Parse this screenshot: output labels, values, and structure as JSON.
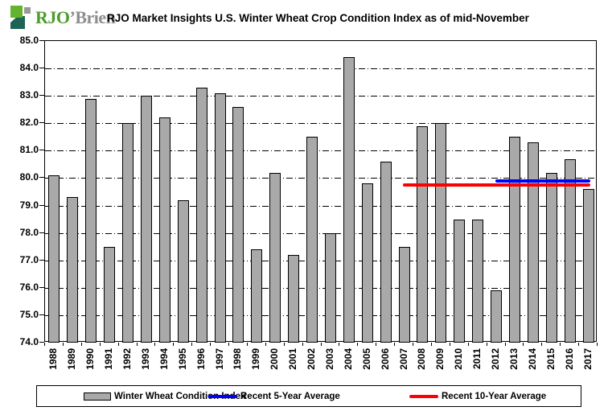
{
  "header": {
    "logo": {
      "text_primary": "RJO",
      "text_secondary": "’Brien",
      "colors": {
        "primary_text": "#4c9c2e",
        "secondary_text": "#8e8e8e",
        "icon_bright_green": "#62b32e",
        "icon_teal": "#1e6356",
        "icon_gray": "#999999"
      }
    }
  },
  "chart_data": {
    "type": "bar",
    "title": "RJO Market Insights U.S. Winter Wheat Crop Condition Index as of mid-November",
    "categories": [
      "1988",
      "1989",
      "1990",
      "1991",
      "1992",
      "1993",
      "1994",
      "1995",
      "1996",
      "1997",
      "1998",
      "1999",
      "2000",
      "2001",
      "2002",
      "2003",
      "2004",
      "2005",
      "2006",
      "2007",
      "2008",
      "2009",
      "2010",
      "2011",
      "2012",
      "2013",
      "2014",
      "2015",
      "2016",
      "2017"
    ],
    "values": [
      80.1,
      79.3,
      82.9,
      77.5,
      82.0,
      83.0,
      82.2,
      79.2,
      83.3,
      83.1,
      82.6,
      77.4,
      80.2,
      77.2,
      81.5,
      78.0,
      84.4,
      79.8,
      80.6,
      77.5,
      81.9,
      82.0,
      78.5,
      78.5,
      75.9,
      81.5,
      81.3,
      80.2,
      80.7,
      79.6
    ],
    "ylim": [
      74.0,
      85.0
    ],
    "ytick_step": 1.0,
    "ytick_format": "one-decimal",
    "grid": "horizontal-dash-dot",
    "bar_color": "#a9a9a9",
    "bar_border_color": "#000000",
    "reference_lines": [
      {
        "name": "Recent 5-Year Average",
        "value": 79.9,
        "color": "#0000ff",
        "from_year": "2012",
        "to_year": "2017"
      },
      {
        "name": "Recent 10-Year Average",
        "value": 79.75,
        "color": "#ff0000",
        "from_year": "2007",
        "to_year": "2017"
      }
    ],
    "legend": [
      {
        "label": "Winter Wheat Condition Index",
        "swatch": "bar",
        "color": "#a9a9a9"
      },
      {
        "label": "Recent 5-Year Average",
        "swatch": "line",
        "color": "#0000ff"
      },
      {
        "label": "Recent 10-Year Average",
        "swatch": "line",
        "color": "#ff0000"
      }
    ],
    "legend_position": "bottom"
  }
}
